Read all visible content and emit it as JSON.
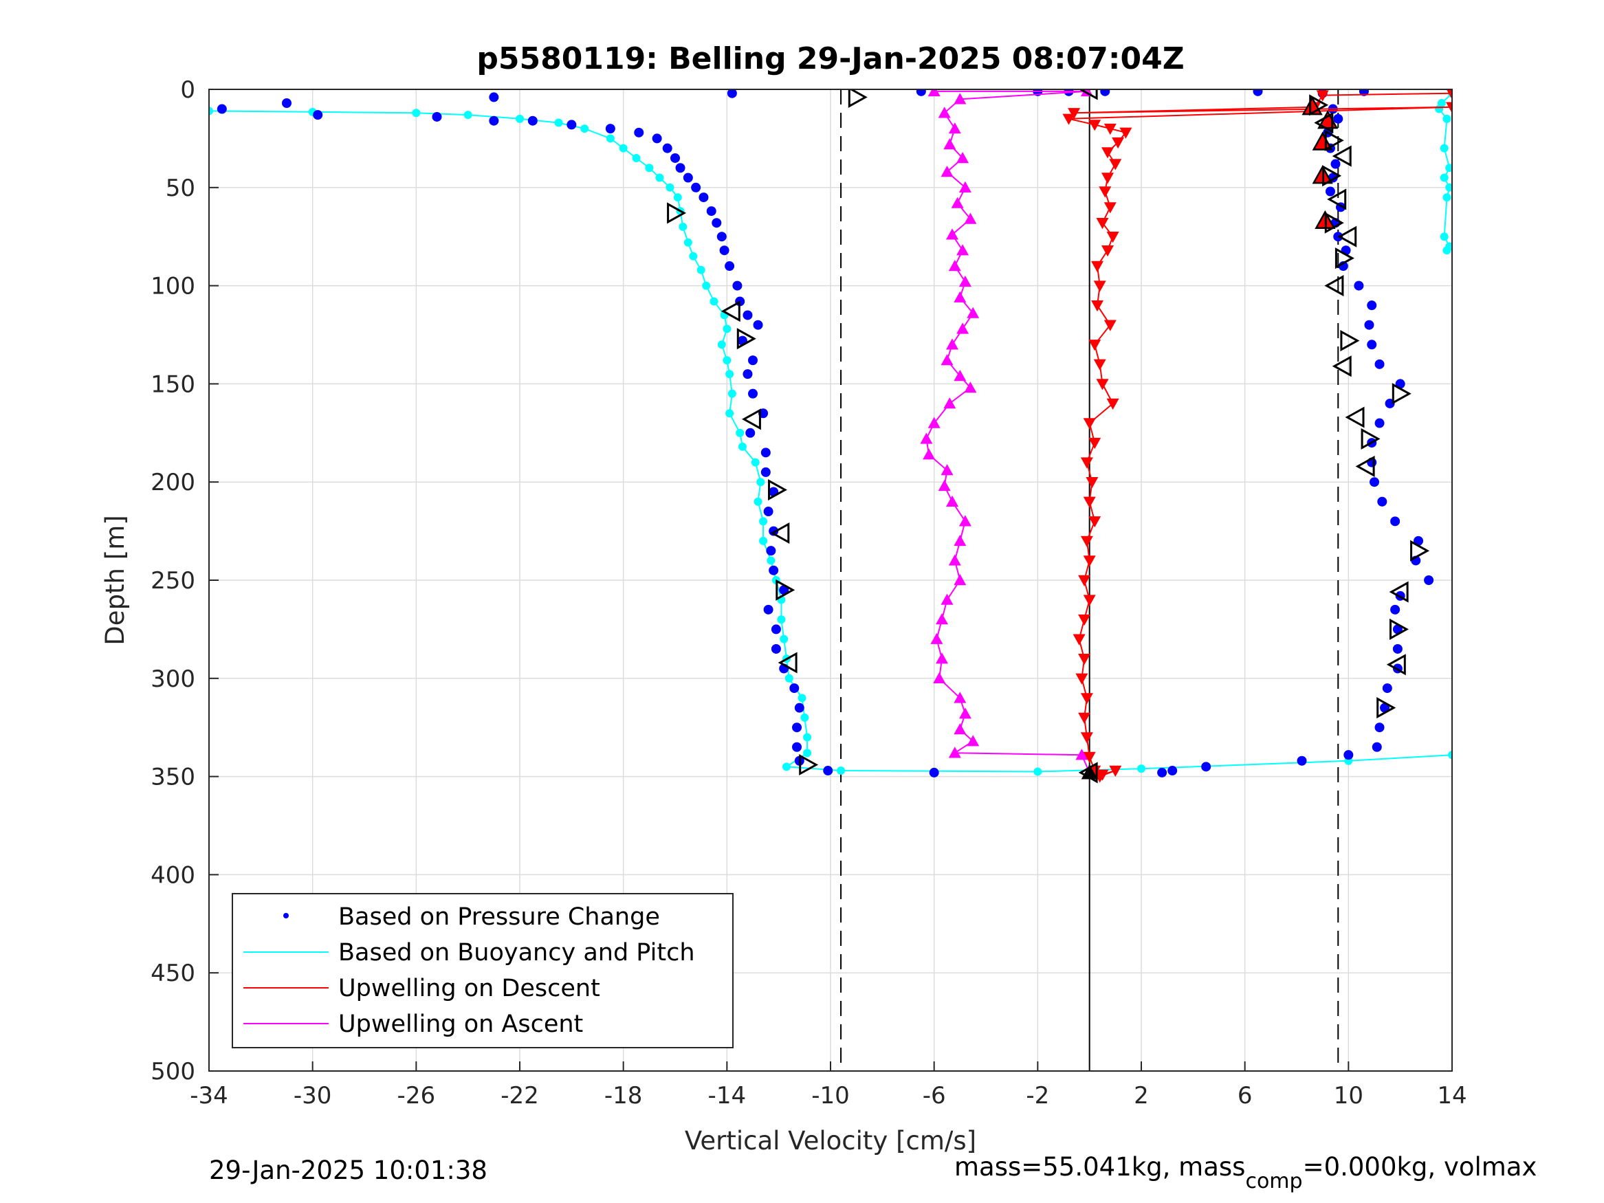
{
  "chart_data": {
    "type": "scatter",
    "title": "p5580119: Belling 29-Jan-2025 08:07:04Z",
    "xlabel": "Vertical Velocity [cm/s]",
    "ylabel": "Depth [m]",
    "xlim": [
      -34,
      14
    ],
    "ylim": [
      500,
      0
    ],
    "y_reversed": true,
    "grid": true,
    "xticks": [
      "-34",
      "-30",
      "-26",
      "-22",
      "-18",
      "-14",
      "-10",
      "-6",
      "-2",
      "2",
      "6",
      "10",
      "14"
    ],
    "yticks": [
      "0",
      "50",
      "100",
      "150",
      "200",
      "250",
      "300",
      "350",
      "400",
      "450",
      "500"
    ],
    "legend_position": "bottom-left",
    "vertical_lines": [
      {
        "x": -9.6,
        "style": "dashed"
      },
      {
        "x": 0,
        "style": "solid"
      },
      {
        "x": 9.6,
        "style": "dashed"
      }
    ],
    "series": [
      {
        "name": "Based on Pressure Change",
        "color": "#0000ff",
        "marker": "dot",
        "descent": [
          [
            -33.5,
            10
          ],
          [
            -31,
            7
          ],
          [
            -29.8,
            13
          ],
          [
            -25.2,
            14
          ],
          [
            -23,
            16
          ],
          [
            -21.5,
            16
          ],
          [
            -20,
            18
          ],
          [
            -18.5,
            20
          ],
          [
            -17.4,
            22
          ],
          [
            -16.7,
            25
          ],
          [
            -16.3,
            30
          ],
          [
            -16.0,
            35
          ],
          [
            -15.8,
            40
          ],
          [
            -15.5,
            45
          ],
          [
            -15.2,
            50
          ],
          [
            -14.9,
            55
          ],
          [
            -14.6,
            62
          ],
          [
            -14.4,
            68
          ],
          [
            -14.2,
            75
          ],
          [
            -14.1,
            82
          ],
          [
            -13.9,
            90
          ],
          [
            -13.6,
            100
          ],
          [
            -13.5,
            108
          ],
          [
            -13.2,
            115
          ],
          [
            -12.8,
            120
          ],
          [
            -13.4,
            128
          ],
          [
            -13.0,
            138
          ],
          [
            -13.2,
            145
          ],
          [
            -13.0,
            155
          ],
          [
            -12.6,
            165
          ],
          [
            -13.1,
            175
          ],
          [
            -12.5,
            185
          ],
          [
            -12.5,
            195
          ],
          [
            -12.2,
            205
          ],
          [
            -12.4,
            215
          ],
          [
            -12.2,
            225
          ],
          [
            -12.3,
            235
          ],
          [
            -12.2,
            245
          ],
          [
            -11.8,
            255
          ],
          [
            -12.4,
            265
          ],
          [
            -12.1,
            275
          ],
          [
            -12.1,
            285
          ],
          [
            -11.8,
            295
          ],
          [
            -11.4,
            305
          ],
          [
            -11.2,
            315
          ],
          [
            -11.3,
            325
          ],
          [
            -11.3,
            335
          ],
          [
            -11.2,
            342
          ],
          [
            -10.1,
            347
          ],
          [
            -6.0,
            348
          ]
        ],
        "ascent": [
          [
            -23,
            4
          ],
          [
            -13.8,
            2
          ],
          [
            -6.5,
            1
          ],
          [
            -2.0,
            1
          ],
          [
            -0.8,
            1
          ],
          [
            0.6,
            1
          ],
          [
            6.5,
            1
          ],
          [
            9.0,
            2
          ],
          [
            10.6,
            1
          ],
          [
            9.4,
            10
          ],
          [
            9.6,
            15
          ],
          [
            9.2,
            22
          ],
          [
            9.3,
            30
          ],
          [
            9.5,
            38
          ],
          [
            9.4,
            45
          ],
          [
            9.3,
            52
          ],
          [
            9.7,
            60
          ],
          [
            9.5,
            68
          ],
          [
            9.6,
            75
          ],
          [
            9.9,
            82
          ],
          [
            9.8,
            90
          ],
          [
            10.4,
            100
          ],
          [
            10.9,
            110
          ],
          [
            10.8,
            120
          ],
          [
            10.9,
            130
          ],
          [
            11.2,
            140
          ],
          [
            12.0,
            150
          ],
          [
            11.6,
            160
          ],
          [
            11.2,
            170
          ],
          [
            10.9,
            180
          ],
          [
            10.9,
            190
          ],
          [
            11.0,
            200
          ],
          [
            11.3,
            210
          ],
          [
            11.8,
            220
          ],
          [
            12.7,
            230
          ],
          [
            12.6,
            240
          ],
          [
            13.1,
            250
          ],
          [
            12.0,
            258
          ],
          [
            11.8,
            265
          ],
          [
            11.9,
            275
          ],
          [
            11.9,
            285
          ],
          [
            11.9,
            295
          ],
          [
            11.5,
            305
          ],
          [
            11.4,
            315
          ],
          [
            11.2,
            325
          ],
          [
            11.1,
            335
          ],
          [
            10.0,
            339
          ],
          [
            8.2,
            342
          ],
          [
            4.5,
            345
          ],
          [
            3.2,
            347
          ],
          [
            2.8,
            348
          ]
        ]
      },
      {
        "name": "Based on Buoyancy and Pitch",
        "color": "#00ffff",
        "marker": "line+dot",
        "descent": [
          [
            -34,
            11
          ],
          [
            -30,
            11.5
          ],
          [
            -26,
            12
          ],
          [
            -24,
            13
          ],
          [
            -22,
            15
          ],
          [
            -20.5,
            17
          ],
          [
            -19.5,
            20
          ],
          [
            -18.5,
            25
          ],
          [
            -18.0,
            30
          ],
          [
            -17.5,
            35
          ],
          [
            -17.0,
            40
          ],
          [
            -16.6,
            45
          ],
          [
            -16.2,
            50
          ],
          [
            -15.9,
            55
          ],
          [
            -15.8,
            62
          ],
          [
            -15.7,
            70
          ],
          [
            -15.5,
            78
          ],
          [
            -15.3,
            85
          ],
          [
            -15.0,
            92
          ],
          [
            -14.8,
            100
          ],
          [
            -14.5,
            108
          ],
          [
            -14.1,
            115
          ],
          [
            -14.0,
            122
          ],
          [
            -14.2,
            130
          ],
          [
            -14.0,
            138
          ],
          [
            -13.9,
            145
          ],
          [
            -13.8,
            155
          ],
          [
            -13.9,
            165
          ],
          [
            -13.5,
            175
          ],
          [
            -13.4,
            182
          ],
          [
            -12.9,
            190
          ],
          [
            -12.7,
            200
          ],
          [
            -12.8,
            210
          ],
          [
            -12.6,
            220
          ],
          [
            -12.6,
            230
          ],
          [
            -12.3,
            240
          ],
          [
            -12.1,
            250
          ],
          [
            -11.9,
            260
          ],
          [
            -11.9,
            270
          ],
          [
            -11.8,
            280
          ],
          [
            -11.7,
            290
          ],
          [
            -11.6,
            300
          ],
          [
            -11.1,
            310
          ],
          [
            -11.0,
            320
          ],
          [
            -10.9,
            330
          ],
          [
            -10.9,
            338
          ],
          [
            -11.7,
            345
          ],
          [
            -9.6,
            347
          ],
          [
            -2,
            347.5
          ],
          [
            2,
            346
          ],
          [
            10,
            342
          ],
          [
            14,
            339
          ]
        ],
        "ascent": [
          [
            14,
            2
          ],
          [
            13.6,
            7
          ],
          [
            13.5,
            10
          ],
          [
            13.8,
            15
          ],
          [
            13.7,
            30
          ],
          [
            13.9,
            40
          ],
          [
            13.7,
            45
          ],
          [
            13.9,
            50
          ],
          [
            13.8,
            55
          ],
          [
            13.7,
            75
          ],
          [
            13.9,
            80
          ],
          [
            13.8,
            82
          ]
        ]
      },
      {
        "name": "Upwelling on Descent",
        "color": "#ff0000",
        "marker": "triangle-down",
        "points": [
          [
            14,
            2
          ],
          [
            9,
            3
          ],
          [
            8.7,
            9
          ],
          [
            -0.6,
            12
          ],
          [
            14,
            9
          ],
          [
            -0.8,
            15
          ],
          [
            0.2,
            18
          ],
          [
            0.8,
            20
          ],
          [
            1.4,
            22
          ],
          [
            1.1,
            27
          ],
          [
            0.7,
            32
          ],
          [
            1.0,
            38
          ],
          [
            0.7,
            45
          ],
          [
            0.6,
            52
          ],
          [
            0.8,
            60
          ],
          [
            0.5,
            68
          ],
          [
            0.9,
            75
          ],
          [
            0.7,
            82
          ],
          [
            0.3,
            90
          ],
          [
            0.4,
            100
          ],
          [
            0.3,
            110
          ],
          [
            0.8,
            120
          ],
          [
            0.2,
            130
          ],
          [
            0.4,
            140
          ],
          [
            0.5,
            150
          ],
          [
            0.9,
            160
          ],
          [
            0.0,
            170
          ],
          [
            0.2,
            180
          ],
          [
            -0.1,
            190
          ],
          [
            0.1,
            200
          ],
          [
            0.0,
            210
          ],
          [
            0.2,
            220
          ],
          [
            -0.1,
            230
          ],
          [
            0.0,
            240
          ],
          [
            -0.2,
            250
          ],
          [
            0.0,
            260
          ],
          [
            -0.2,
            270
          ],
          [
            -0.4,
            280
          ],
          [
            -0.2,
            290
          ],
          [
            -0.3,
            300
          ],
          [
            -0.1,
            310
          ],
          [
            -0.2,
            320
          ],
          [
            -0.1,
            330
          ],
          [
            0.0,
            340
          ],
          [
            0.2,
            347
          ],
          [
            0.5,
            349
          ],
          [
            1.0,
            347
          ],
          [
            0.4,
            350
          ]
        ]
      },
      {
        "name": "Upwelling on Ascent",
        "color": "#ff00ff",
        "marker": "triangle-up",
        "points": [
          [
            -6.0,
            1
          ],
          [
            -0.1,
            1
          ],
          [
            -5.0,
            5
          ],
          [
            -5.6,
            12
          ],
          [
            -5.2,
            20
          ],
          [
            -5.4,
            28
          ],
          [
            -4.9,
            35
          ],
          [
            -5.5,
            42
          ],
          [
            -4.8,
            50
          ],
          [
            -5.1,
            58
          ],
          [
            -4.6,
            66
          ],
          [
            -5.3,
            74
          ],
          [
            -4.9,
            82
          ],
          [
            -5.2,
            90
          ],
          [
            -4.8,
            98
          ],
          [
            -5.0,
            106
          ],
          [
            -4.5,
            114
          ],
          [
            -4.9,
            122
          ],
          [
            -5.3,
            130
          ],
          [
            -5.5,
            138
          ],
          [
            -5.0,
            146
          ],
          [
            -4.6,
            152
          ],
          [
            -5.4,
            160
          ],
          [
            -6.0,
            170
          ],
          [
            -6.3,
            178
          ],
          [
            -6.2,
            186
          ],
          [
            -5.5,
            194
          ],
          [
            -5.6,
            202
          ],
          [
            -5.3,
            210
          ],
          [
            -4.8,
            220
          ],
          [
            -5.0,
            230
          ],
          [
            -5.2,
            240
          ],
          [
            -5.0,
            250
          ],
          [
            -5.5,
            260
          ],
          [
            -5.7,
            270
          ],
          [
            -5.9,
            280
          ],
          [
            -5.7,
            290
          ],
          [
            -5.8,
            300
          ],
          [
            -5.0,
            310
          ],
          [
            -4.8,
            318
          ],
          [
            -5.0,
            326
          ],
          [
            -4.5,
            332
          ],
          [
            -5.2,
            338
          ],
          [
            -0.3,
            339
          ],
          [
            0.0,
            348
          ]
        ]
      },
      {
        "name": "",
        "color": "#000000",
        "marker": "open-triangle",
        "points": [
          [
            -9.0,
            4
          ],
          [
            0.0,
            0
          ],
          [
            -16,
            63
          ],
          [
            -13.8,
            113
          ],
          [
            -13.3,
            127
          ],
          [
            -13.0,
            168
          ],
          [
            -12.1,
            204
          ],
          [
            -11.9,
            226
          ],
          [
            -11.8,
            255
          ],
          [
            -11.6,
            292
          ],
          [
            -10.9,
            344
          ],
          [
            0.0,
            348
          ],
          [
            8.8,
            8
          ],
          [
            9.1,
            17
          ],
          [
            9.4,
            26
          ],
          [
            9.8,
            34
          ],
          [
            9.3,
            44
          ],
          [
            9.6,
            56
          ],
          [
            9.4,
            68
          ],
          [
            10.0,
            75
          ],
          [
            9.8,
            86
          ],
          [
            9.5,
            100
          ],
          [
            10.0,
            128
          ],
          [
            9.8,
            141
          ],
          [
            12.0,
            155
          ],
          [
            10.3,
            167
          ],
          [
            10.8,
            178
          ],
          [
            10.7,
            192
          ],
          [
            12.7,
            235
          ],
          [
            12.0,
            256
          ],
          [
            11.9,
            275
          ],
          [
            11.9,
            293
          ],
          [
            11.4,
            315
          ]
        ]
      },
      {
        "name": "",
        "color": "#ff0000",
        "marker": "filled-triangle",
        "points": [
          [
            8.6,
            9
          ],
          [
            9.2,
            16
          ],
          [
            9.0,
            27
          ],
          [
            9.0,
            44
          ],
          [
            9.1,
            67
          ]
        ]
      }
    ],
    "legend": [
      "Based on Pressure Change",
      "Based on Buoyancy and Pitch",
      "Upwelling on Descent",
      "Upwelling on Ascent"
    ]
  },
  "footer": {
    "timestamp": "29-Jan-2025 10:01:38",
    "mass_text_1": "mass=55.041kg, mass",
    "mass_sub": "comp",
    "mass_text_2": "=0.000kg, volmax"
  }
}
